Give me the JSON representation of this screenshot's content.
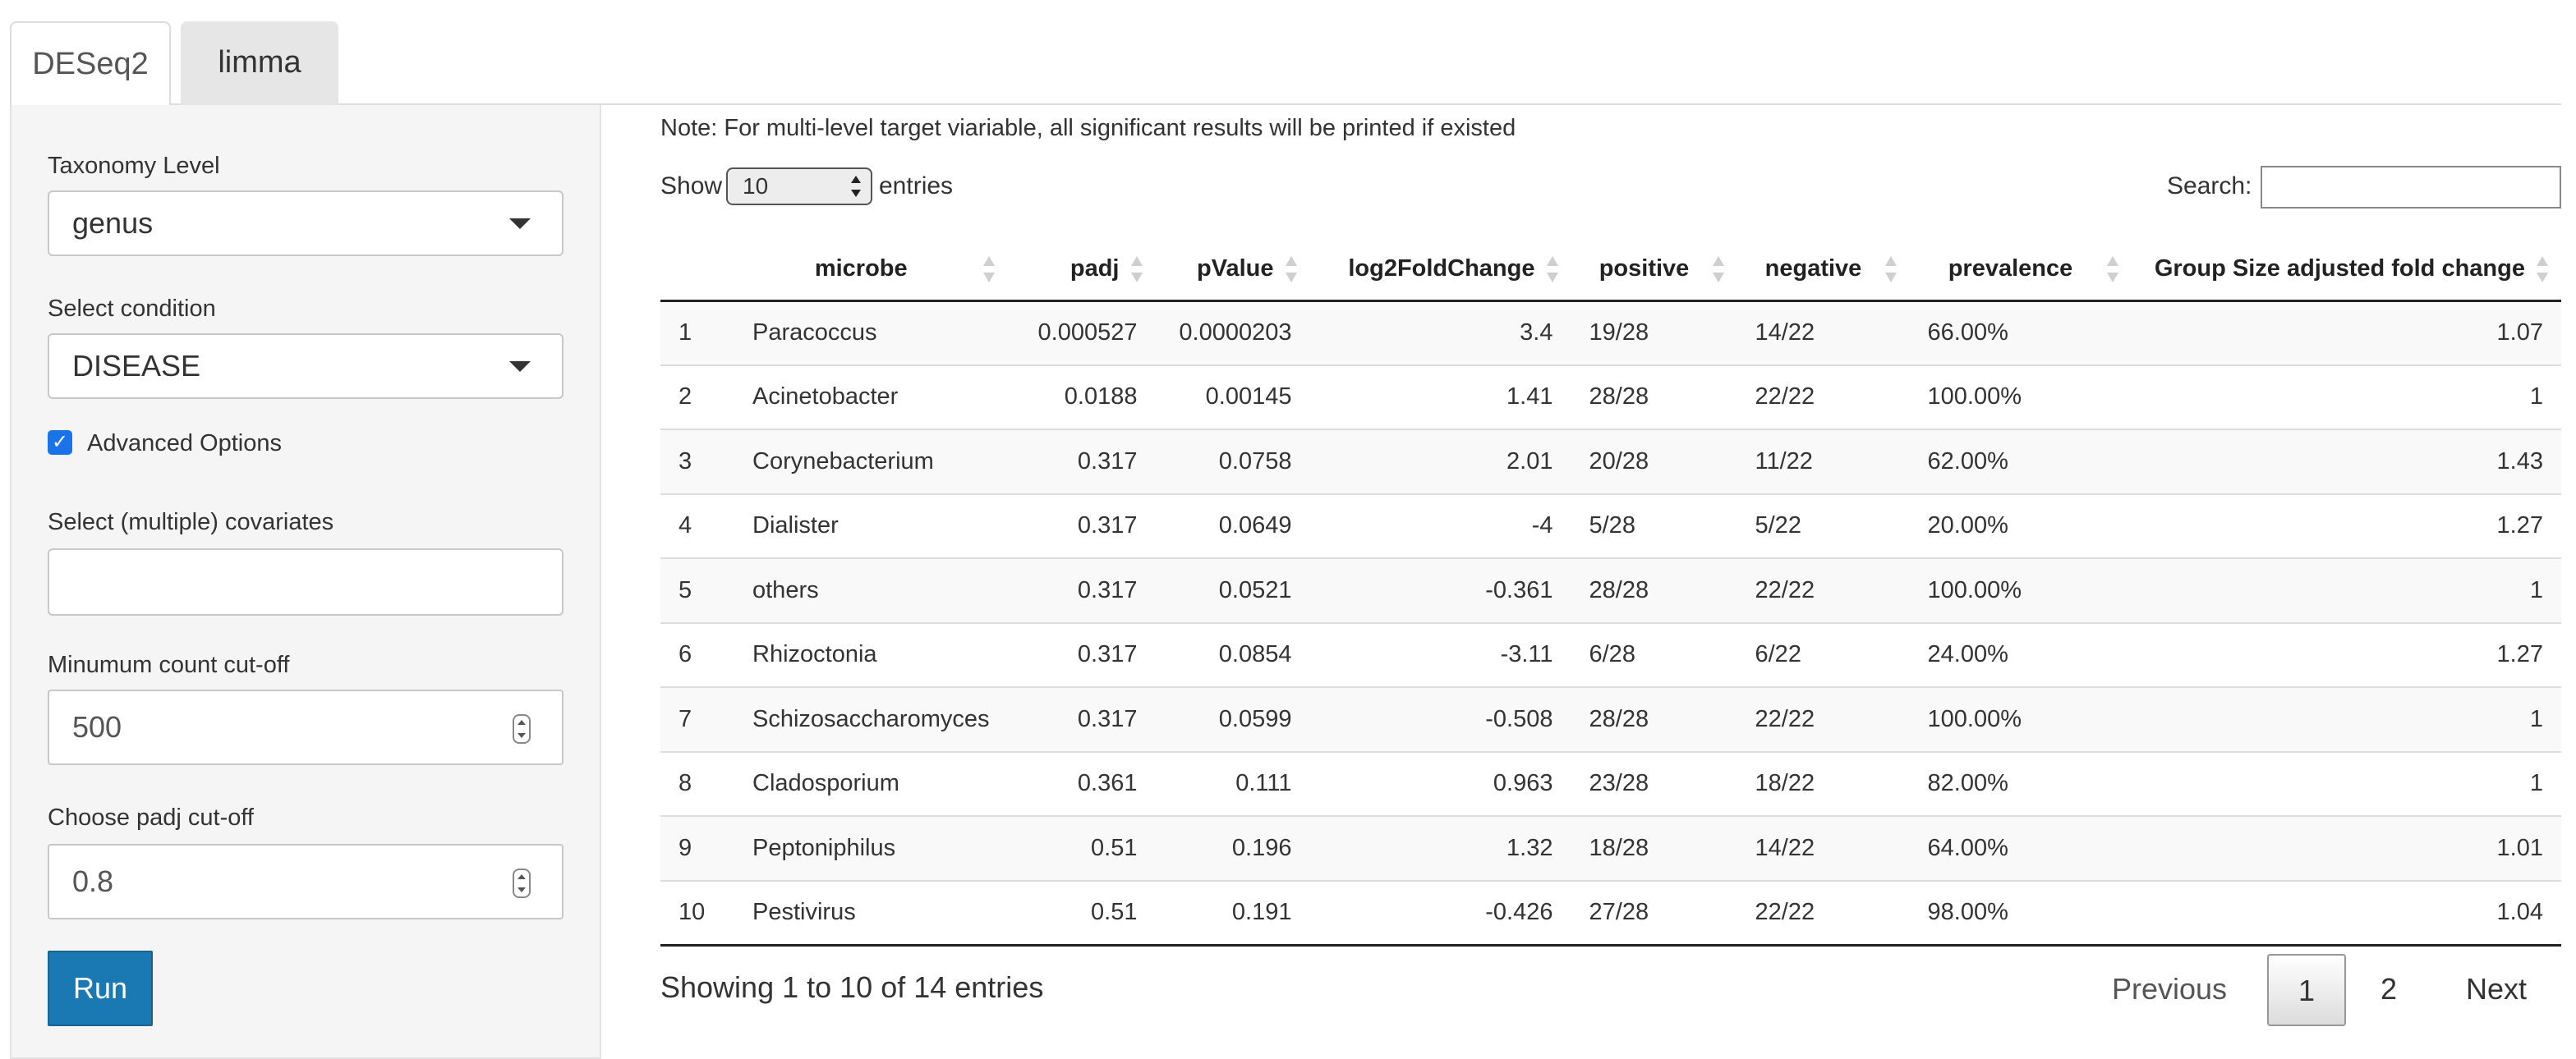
{
  "tabs": [
    {
      "label": "DESeq2",
      "active": true
    },
    {
      "label": "limma",
      "active": false
    }
  ],
  "sidebar": {
    "taxonomy_label": "Taxonomy Level",
    "taxonomy_value": "genus",
    "condition_label": "Select condition",
    "condition_value": "DISEASE",
    "advanced_label": "Advanced Options",
    "advanced_checked": true,
    "covariates_label": "Select (multiple) covariates",
    "covariates_value": "",
    "mincount_label": "Minumum count cut-off",
    "mincount_value": "500",
    "padj_label": "Choose padj cut-off",
    "padj_value": "0.8",
    "run_label": "Run"
  },
  "main": {
    "note": "Note: For multi-level target viariable, all significant results will be printed if existed",
    "show_label": "Show",
    "length_value": "10",
    "entries_label": "entries",
    "search_label": "Search:",
    "search_value": ""
  },
  "table": {
    "columns": [
      "",
      "microbe",
      "padj",
      "pValue",
      "log2FoldChange",
      "positive",
      "negative",
      "prevalence",
      "Group Size adjusted fold change"
    ],
    "rows": [
      [
        "1",
        "Paracoccus",
        "0.000527",
        "0.0000203",
        "3.4",
        "19/28",
        "14/22",
        "66.00%",
        "1.07"
      ],
      [
        "2",
        "Acinetobacter",
        "0.0188",
        "0.00145",
        "1.41",
        "28/28",
        "22/22",
        "100.00%",
        "1"
      ],
      [
        "3",
        "Corynebacterium",
        "0.317",
        "0.0758",
        "2.01",
        "20/28",
        "11/22",
        "62.00%",
        "1.43"
      ],
      [
        "4",
        "Dialister",
        "0.317",
        "0.0649",
        "-4",
        "5/28",
        "5/22",
        "20.00%",
        "1.27"
      ],
      [
        "5",
        "others",
        "0.317",
        "0.0521",
        "-0.361",
        "28/28",
        "22/22",
        "100.00%",
        "1"
      ],
      [
        "6",
        "Rhizoctonia",
        "0.317",
        "0.0854",
        "-3.11",
        "6/28",
        "6/22",
        "24.00%",
        "1.27"
      ],
      [
        "7",
        "Schizosaccharomyces",
        "0.317",
        "0.0599",
        "-0.508",
        "28/28",
        "22/22",
        "100.00%",
        "1"
      ],
      [
        "8",
        "Cladosporium",
        "0.361",
        "0.111",
        "0.963",
        "23/28",
        "18/22",
        "82.00%",
        "1"
      ],
      [
        "9",
        "Peptoniphilus",
        "0.51",
        "0.196",
        "1.32",
        "18/28",
        "14/22",
        "64.00%",
        "1.01"
      ],
      [
        "10",
        "Pestivirus",
        "0.51",
        "0.191",
        "-0.426",
        "27/28",
        "22/22",
        "98.00%",
        "1.04"
      ]
    ]
  },
  "footer": {
    "info": "Showing 1 to 10 of 14 entries",
    "previous": "Previous",
    "pages": [
      "1",
      "2"
    ],
    "current_page": "1",
    "next": "Next"
  },
  "colors": {
    "run_button": "#1a79b3",
    "checkbox": "#1a73e8",
    "sidebar_bg": "#f5f5f5"
  }
}
